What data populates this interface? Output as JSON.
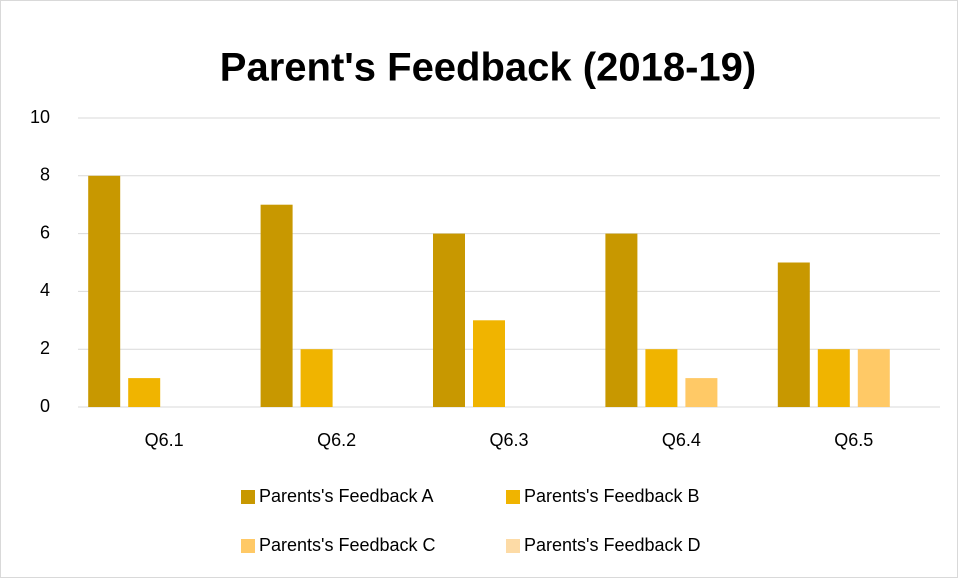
{
  "chart_data": {
    "type": "bar",
    "title": "Parent's Feedback (2018-19)",
    "categories": [
      "Q6.1",
      "Q6.2",
      "Q6.3",
      "Q6.4",
      "Q6.5"
    ],
    "series": [
      {
        "name": "Parents's Feedback A",
        "color": "#c89800",
        "values": [
          8,
          7,
          6,
          6,
          5
        ]
      },
      {
        "name": "Parents's Feedback B",
        "color": "#f0b400",
        "values": [
          1,
          2,
          3,
          2,
          2
        ]
      },
      {
        "name": "Parents's Feedback C",
        "color": "#ffc966",
        "values": [
          0,
          0,
          0,
          1,
          2
        ]
      },
      {
        "name": "Parents's Feedback D",
        "color": "#fddba6",
        "values": [
          0,
          0,
          0,
          0,
          0
        ]
      }
    ],
    "ylim": [
      0,
      10
    ],
    "yticks": [
      0,
      2,
      4,
      6,
      8,
      10
    ],
    "grid": true,
    "legend": "bottom"
  }
}
